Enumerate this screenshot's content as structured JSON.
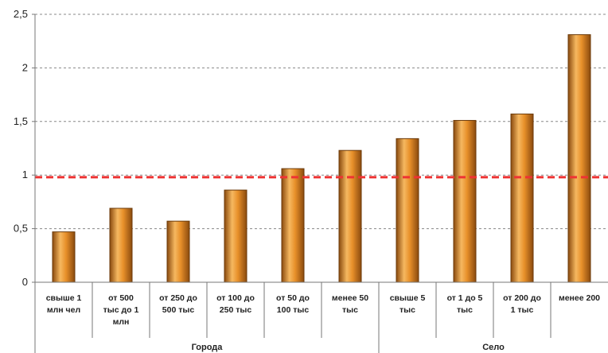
{
  "chart_data": {
    "type": "bar",
    "categories": [
      [
        "свыше 1",
        "млн чел"
      ],
      [
        "от 500",
        "тыс до 1",
        "млн"
      ],
      [
        "от 250 до",
        "500 тыс"
      ],
      [
        "от 100 до",
        "250 тыс"
      ],
      [
        "от 50 до",
        "100 тыс"
      ],
      [
        "менее 50",
        "тыс"
      ],
      [
        "свыше 5",
        "тыс"
      ],
      [
        "от 1 до 5",
        "тыс"
      ],
      [
        "от 200 до",
        "1 тыс"
      ],
      [
        "менее 200"
      ]
    ],
    "values": [
      0.47,
      0.69,
      0.57,
      0.86,
      1.06,
      1.23,
      1.34,
      1.51,
      1.57,
      2.31
    ],
    "groups": [
      {
        "label": "Города",
        "start": 0,
        "end": 5
      },
      {
        "label": "Село",
        "start": 6,
        "end": 9
      }
    ],
    "ylim": [
      0,
      2.5
    ],
    "yticks": [
      0,
      0.5,
      1,
      1.5,
      2,
      2.5
    ],
    "ytick_labels": [
      "0",
      "0,5",
      "1",
      "1,5",
      "2",
      "2,5"
    ],
    "reference_line": {
      "value": 0.98,
      "color": "#ee3333",
      "style": "dashed"
    },
    "grid": true,
    "colors": {
      "bar": "#e8902a",
      "bar_highlight": "#f6b860",
      "bar_shadow": "#8a4a0e",
      "grid": "#888888",
      "axis": "#777777"
    }
  }
}
